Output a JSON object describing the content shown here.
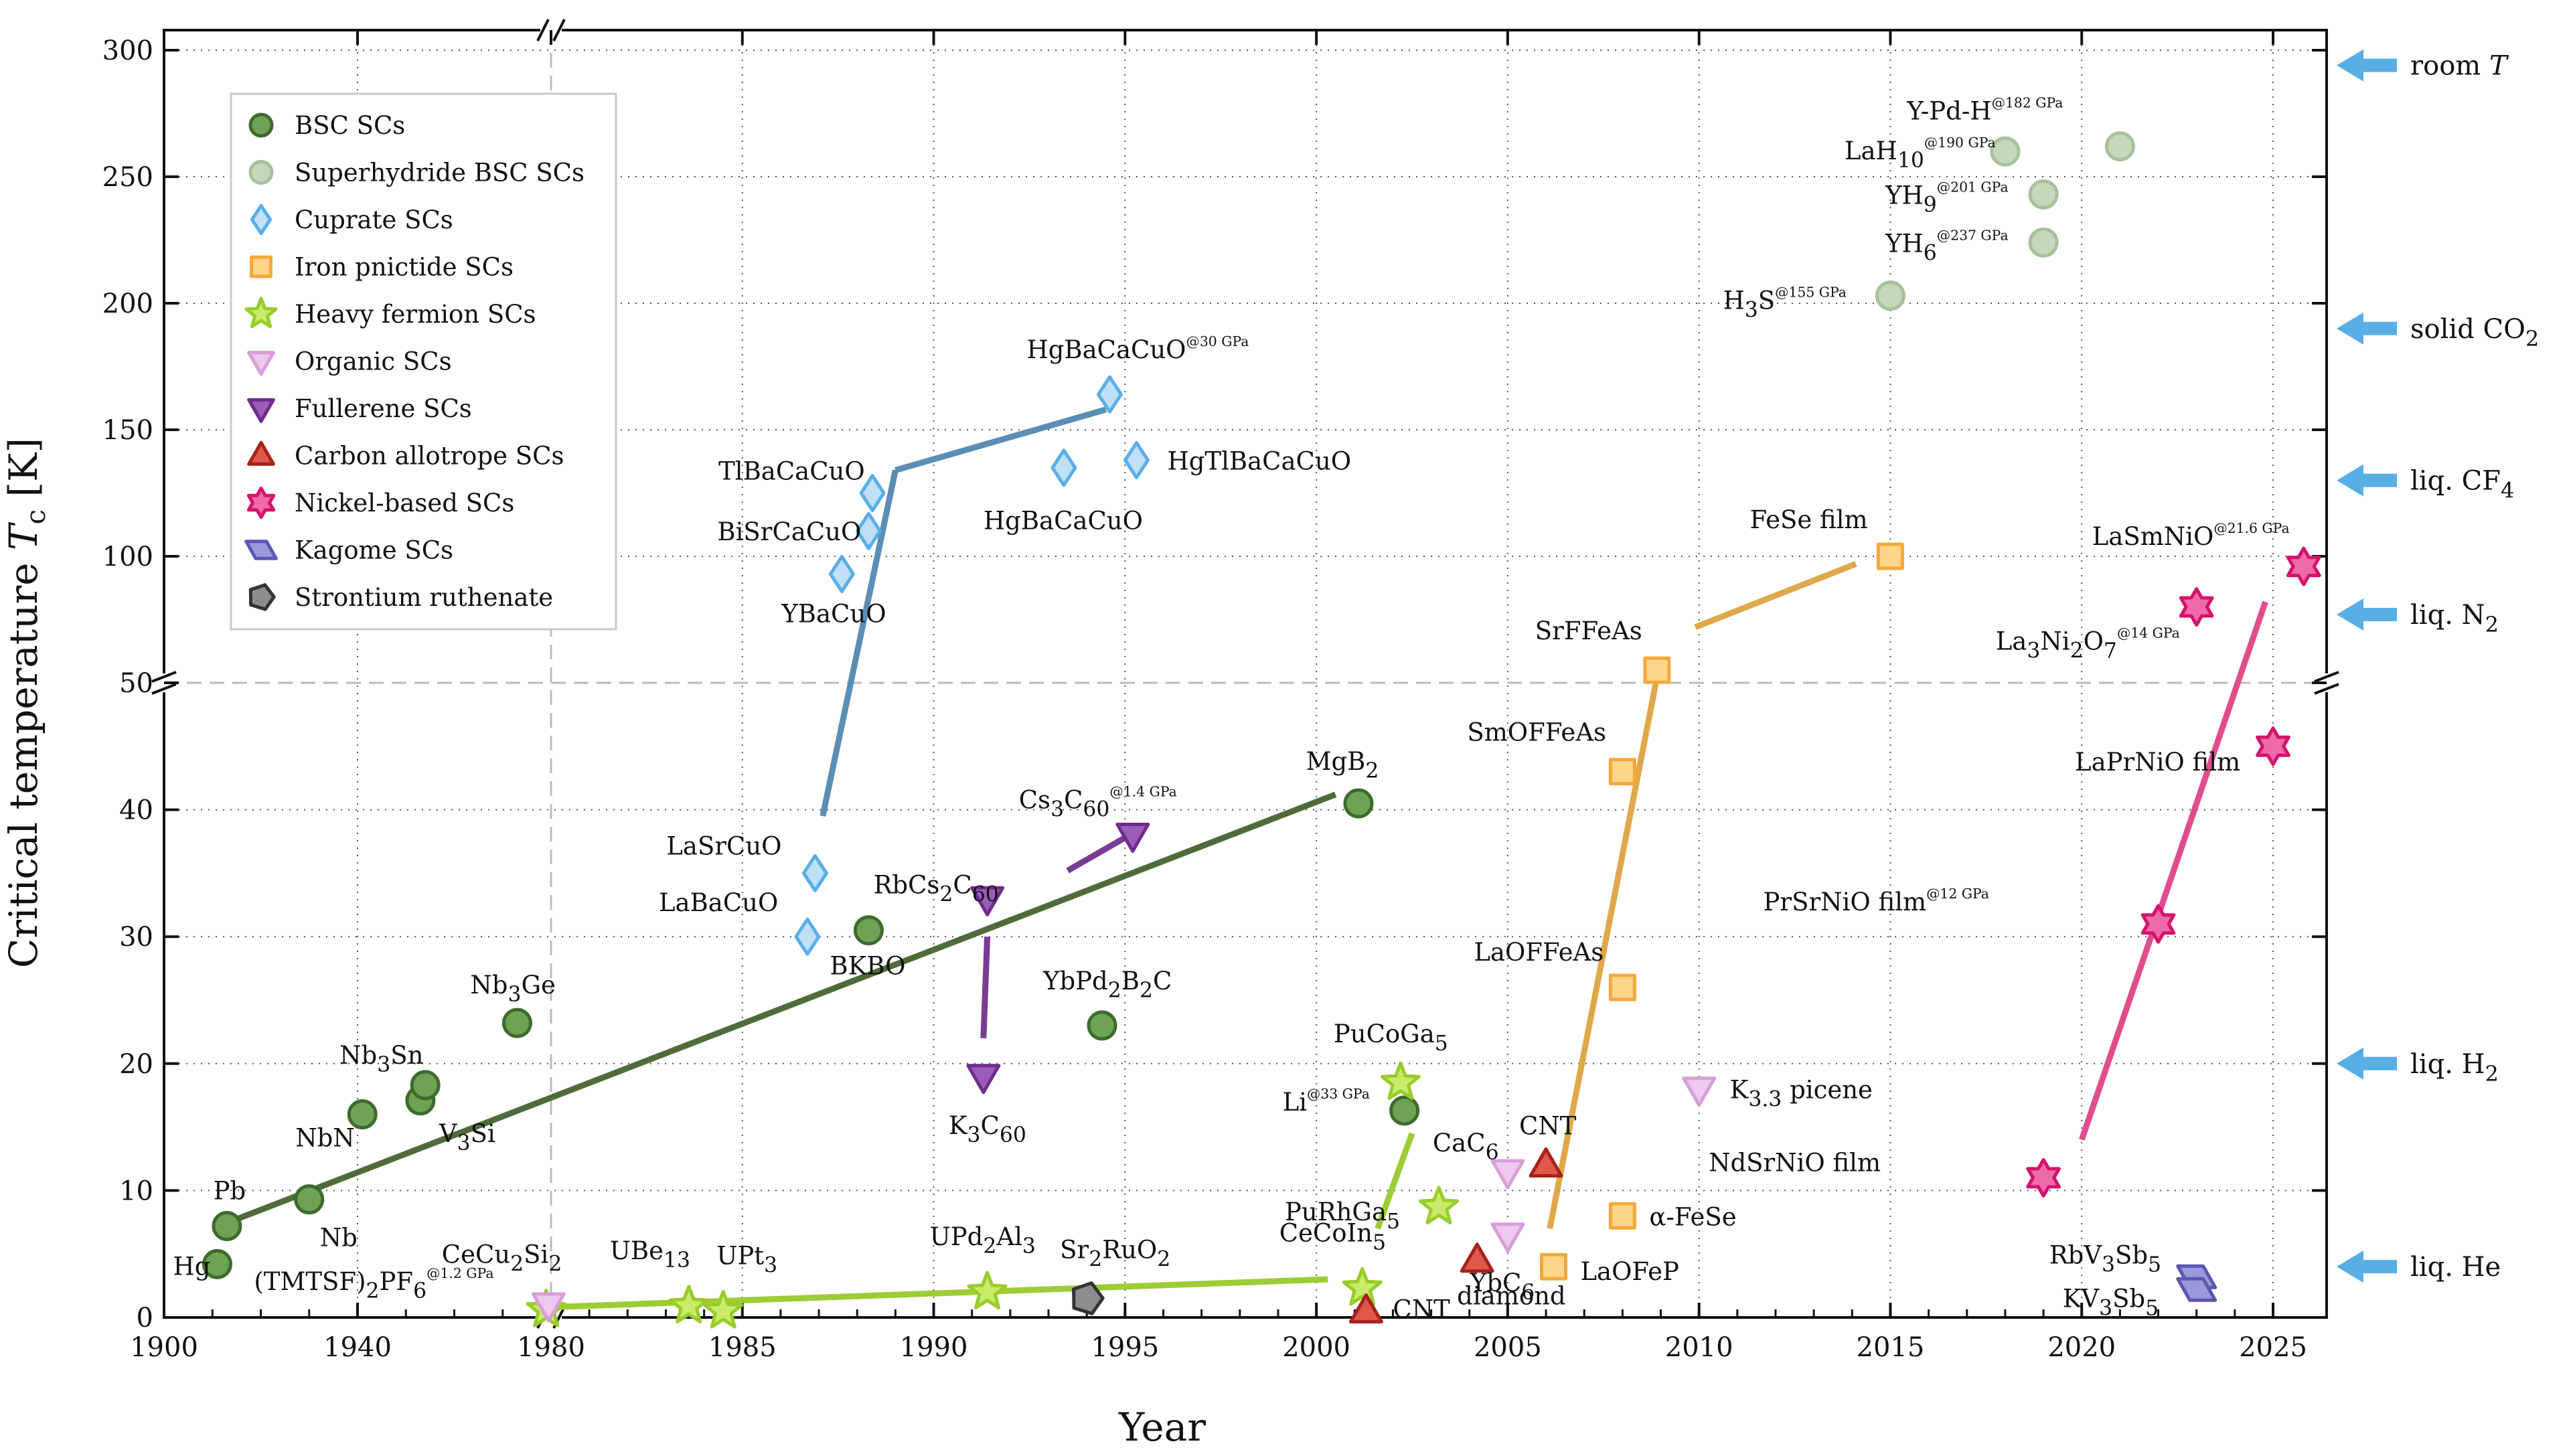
{
  "chart_data": {
    "type": "scatter",
    "title": "",
    "xlabel": "Year",
    "ylabel": "Critical temperature T_c [K]",
    "xlim": [
      1900,
      2026
    ],
    "x_broken_at": 1980,
    "x_ticks": [
      1900,
      1940,
      1980,
      1985,
      1990,
      1995,
      2000,
      2005,
      2010,
      2015,
      2020,
      2025
    ],
    "ylim_lower": [
      0,
      50
    ],
    "ylim_upper": [
      50,
      300
    ],
    "y_ticks": [
      0,
      10,
      20,
      30,
      40,
      50,
      100,
      150,
      200,
      250,
      300
    ],
    "grid": true,
    "legend_position": "top-left",
    "series": [
      {
        "name": "BSC SCs",
        "marker": "circle",
        "fill": "#6ea355",
        "stroke": "#3e6b2c",
        "points": [
          {
            "x": 1911,
            "y": 4.2,
            "label": "Hg"
          },
          {
            "x": 1913,
            "y": 7.2,
            "label": "Pb"
          },
          {
            "x": 1930,
            "y": 9.3,
            "label": "Nb"
          },
          {
            "x": 1941,
            "y": 16.0,
            "label": "NbN"
          },
          {
            "x": 1953,
            "y": 17.1,
            "label": "V3Si"
          },
          {
            "x": 1954,
            "y": 18.3,
            "label": "Nb3Sn"
          },
          {
            "x": 1973,
            "y": 23.2,
            "label": "Nb3Ge"
          },
          {
            "x": 1988.3,
            "y": 30.5,
            "label": "BKBO"
          },
          {
            "x": 1994.4,
            "y": 23.0,
            "label": "YbPd2B2C"
          },
          {
            "x": 2001.1,
            "y": 40.5,
            "label": "MgB2"
          },
          {
            "x": 2002.3,
            "y": 16.3,
            "label": "Li@33 GPa"
          }
        ]
      },
      {
        "name": "Superhydride BSC SCs",
        "marker": "circle",
        "fill": "#c5d9b9",
        "stroke": "#a7c19a",
        "points": [
          {
            "x": 2015,
            "y": 203,
            "label": "H3S@155 GPa"
          },
          {
            "x": 2018,
            "y": 260,
            "label": "LaH10@190 GPa"
          },
          {
            "x": 2019,
            "y": 243,
            "label": "YH9@201 GPa"
          },
          {
            "x": 2019,
            "y": 224,
            "label": "YH6@237 GPa"
          },
          {
            "x": 2021,
            "y": 262,
            "label": "Y-Pd-H@182 GPa"
          }
        ]
      },
      {
        "name": "Cuprate SCs",
        "marker": "diamond",
        "fill": "#bfe0f7",
        "stroke": "#5aaee6",
        "points": [
          {
            "x": 1986.7,
            "y": 30,
            "label": "LaBaCuO"
          },
          {
            "x": 1986.9,
            "y": 35,
            "label": "LaSrCuO"
          },
          {
            "x": 1987.6,
            "y": 93,
            "label": "YBaCuO"
          },
          {
            "x": 1988.3,
            "y": 110,
            "label": "BiSrCaCuO"
          },
          {
            "x": 1988.4,
            "y": 125,
            "label": "TlBaCaCuO"
          },
          {
            "x": 1993.4,
            "y": 135,
            "label": "HgBaCaCuO"
          },
          {
            "x": 1994.6,
            "y": 164,
            "label": "HgBaCaCuO@30 GPa"
          },
          {
            "x": 1995.3,
            "y": 138,
            "label": "HgTlBaCaCuO"
          }
        ]
      },
      {
        "name": "Iron pnictide SCs",
        "marker": "square",
        "fill": "#fdd58b",
        "stroke": "#f5a83a",
        "points": [
          {
            "x": 2006.2,
            "y": 4,
            "label": "LaOFeP"
          },
          {
            "x": 2008,
            "y": 8,
            "label": "α-FeSe"
          },
          {
            "x": 2008,
            "y": 26,
            "label": "LaOFFeAs"
          },
          {
            "x": 2008,
            "y": 43,
            "label": "SmOFFeAs"
          },
          {
            "x": 2008.9,
            "y": 55,
            "label": "SrFFeAs"
          },
          {
            "x": 2015,
            "y": 100,
            "label": "FeSe film"
          }
        ]
      },
      {
        "name": "Heavy fermion SCs",
        "marker": "star",
        "fill": "#c8ec6a",
        "stroke": "#9acc2c",
        "points": [
          {
            "x": 1979,
            "y": 0.6,
            "label": "CeCu2Si2"
          },
          {
            "x": 1983.6,
            "y": 0.9,
            "label": "UBe13"
          },
          {
            "x": 1984.5,
            "y": 0.5,
            "label": "UPt3"
          },
          {
            "x": 1991.4,
            "y": 2.0,
            "label": "UPd2Al3"
          },
          {
            "x": 2001.2,
            "y": 2.3,
            "label": "CeCoIn5"
          },
          {
            "x": 2002.2,
            "y": 18.5,
            "label": "PuCoGa5"
          },
          {
            "x": 2003.2,
            "y": 8.7,
            "label": "PuRhGa5"
          }
        ]
      },
      {
        "name": "Organic SCs",
        "marker": "triangle-down",
        "fill": "#eec8ee",
        "stroke": "#d79fd7",
        "points": [
          {
            "x": 1979.5,
            "y": 1.0,
            "label": "(TMTSF)2PF6@1.2 GPa"
          },
          {
            "x": 2005,
            "y": 11.5,
            "label": "CaC6"
          },
          {
            "x": 2005,
            "y": 6.5,
            "label": "YbC6"
          },
          {
            "x": 2010,
            "y": 18,
            "label": "K3.3 picene"
          }
        ]
      },
      {
        "name": "Fullerene SCs",
        "marker": "triangle-down",
        "fill": "#9b5cb5",
        "stroke": "#6e2d8d",
        "points": [
          {
            "x": 1991.3,
            "y": 19,
            "label": "K3C60"
          },
          {
            "x": 1991.4,
            "y": 33,
            "label": "RbCs2C60"
          },
          {
            "x": 1995.2,
            "y": 38,
            "label": "Cs3C60@1.4 GPa"
          }
        ]
      },
      {
        "name": "Carbon allotrope SCs",
        "marker": "triangle-up",
        "fill": "#e0584a",
        "stroke": "#a5231c",
        "points": [
          {
            "x": 2001.3,
            "y": 0.5,
            "label": "CNT"
          },
          {
            "x": 2004.2,
            "y": 4.5,
            "label": "diamond"
          },
          {
            "x": 2006,
            "y": 12,
            "label": "CNT"
          }
        ]
      },
      {
        "name": "Nickel-based SCs",
        "marker": "hexagram",
        "fill": "#ef6aa8",
        "stroke": "#d3136c",
        "points": [
          {
            "x": 2019,
            "y": 11,
            "label": "NdSrNiO film"
          },
          {
            "x": 2022,
            "y": 31,
            "label": "PrSrNiO film@12 GPa"
          },
          {
            "x": 2023,
            "y": 80,
            "label": "La3Ni2O7@14 GPa"
          },
          {
            "x": 2025,
            "y": 45,
            "label": "LaPrNiO film"
          },
          {
            "x": 2025.8,
            "y": 96,
            "label": "LaSmNiO@21.6 GPa"
          }
        ]
      },
      {
        "name": "Kagome SCs",
        "marker": "parallelogram",
        "fill": "#9b98db",
        "stroke": "#5b56b3",
        "points": [
          {
            "x": 2023,
            "y": 3.2,
            "label": "RbV3Sb5"
          },
          {
            "x": 2023,
            "y": 2.2,
            "label": "KV3Sb5"
          }
        ]
      },
      {
        "name": "Strontium ruthenate",
        "marker": "pentagon",
        "fill": "#8d8d8d",
        "stroke": "#333333",
        "points": [
          {
            "x": 1994,
            "y": 1.5,
            "label": "Sr2RuO2"
          }
        ]
      }
    ],
    "trend_lines": [
      {
        "series": "BSC SCs",
        "color": "#4f6b3a",
        "from": [
          1912,
          7.3
        ],
        "to": [
          2000.5,
          41.2
        ]
      },
      {
        "series": "Cuprate SCs",
        "color": "#5b8db5",
        "from": [
          1987.1,
          39.5
        ],
        "to": [
          1989.0,
          134
        ]
      },
      {
        "series": "Cuprate SCs",
        "color": "#5b8db5",
        "from": [
          1989.0,
          134
        ],
        "to": [
          1994.5,
          158
        ]
      },
      {
        "series": "Heavy fermion SCs",
        "color": "#9ecc35",
        "from": [
          1979.2,
          0.8
        ],
        "to": [
          2000.3,
          3.0
        ]
      },
      {
        "series": "Heavy fermion SCs",
        "color": "#9ecc35",
        "from": [
          2001.6,
          7.0
        ],
        "to": [
          2002.5,
          14.5
        ]
      },
      {
        "series": "Fullerene SCs",
        "color": "#7a3b94",
        "from": [
          1991.3,
          22
        ],
        "to": [
          1991.4,
          30
        ]
      },
      {
        "series": "Fullerene SCs",
        "color": "#7a3b94",
        "from": [
          1993.5,
          35.2
        ],
        "to": [
          1995.0,
          37.8
        ]
      },
      {
        "series": "Iron pnictide SCs",
        "color": "#dfa84a",
        "from": [
          2006.1,
          7.0
        ],
        "to": [
          2009.0,
          60
        ]
      },
      {
        "series": "Iron pnictide SCs",
        "color": "#dfa84a",
        "from": [
          2009.9,
          72
        ],
        "to": [
          2014.1,
          97
        ]
      },
      {
        "series": "Nickel-based SCs",
        "color": "#e04d8f",
        "from": [
          2020,
          14
        ],
        "to": [
          2024.8,
          82
        ]
      }
    ],
    "reference_lines": [
      {
        "label": "room T",
        "y": 294
      },
      {
        "label": "solid CO2",
        "y": 190
      },
      {
        "label": "liq. CF4",
        "y": 130
      },
      {
        "label": "liq. N2",
        "y": 77
      },
      {
        "label": "liq. H2",
        "y": 20
      },
      {
        "label": "liq. He",
        "y": 4
      }
    ],
    "ref_arrow_color": "#5aaee6"
  }
}
